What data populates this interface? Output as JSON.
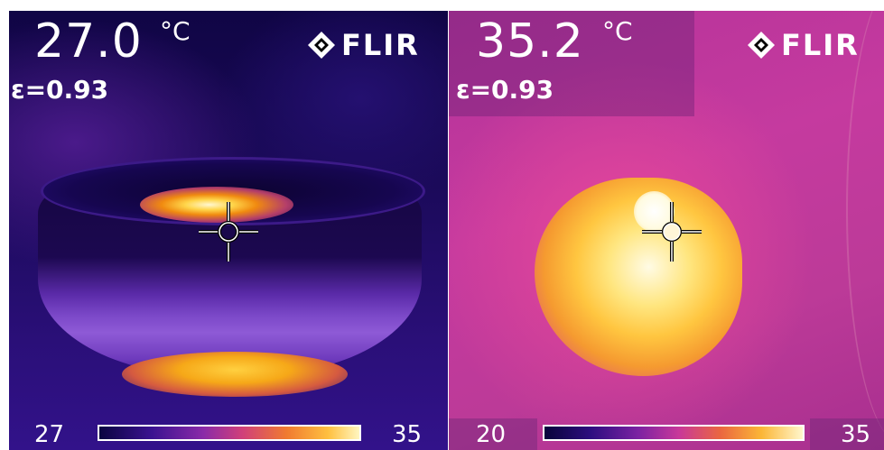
{
  "left": {
    "temperature": "27.0",
    "unit": "°C",
    "emissivity": "ε=0.93",
    "brand": "FLIR",
    "scale_min": "27",
    "scale_max": "35"
  },
  "right": {
    "temperature": "35.2",
    "unit": "°C",
    "emissivity": "ε=0.93",
    "brand": "FLIR",
    "scale_min": "20",
    "scale_max": "35"
  },
  "colors": {
    "palette_cold": "#1a0a5a",
    "palette_mid": "#c8389a",
    "palette_warm": "#f59a20",
    "palette_hot": "#fffbe5",
    "overlay_text": "#ffffff"
  },
  "icons": [
    "flir-logo-icon",
    "crosshair-icon"
  ]
}
